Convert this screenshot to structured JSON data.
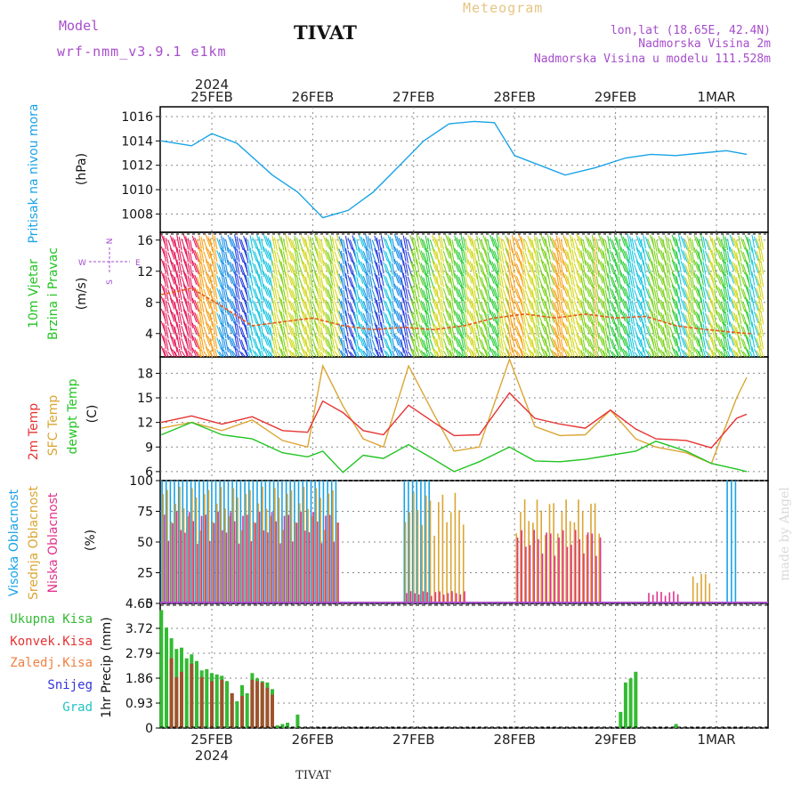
{
  "header": {
    "model_label": "Model",
    "model_name": "wrf-nmm_v3.9.1 e1km",
    "title": "TIVAT",
    "meteogram": "Meteogram",
    "lonlat": "lon,lat (18.65E, 42.4N)",
    "elevation": "Nadmorska Visina 2m",
    "model_elevation": "Nadmorska Visina u modelu 111.528m",
    "footer": "TIVAT",
    "watermark": "made by Angel",
    "year_top": "2024",
    "year_bottom": "2024"
  },
  "colors": {
    "pressure": "#1aa3e6",
    "temp2m": "#e53333",
    "sfc_temp": "#dba533",
    "dewpoint": "#22c422",
    "purple": "#a64dcc",
    "precip_total": "#33bb33",
    "precip_conv": "#e53333",
    "precip_frozen": "#f08040",
    "snow": "#3333dd",
    "graupel": "#22c4c4",
    "grid": "#888888"
  },
  "dates": [
    "25FEB",
    "26FEB",
    "27FEB",
    "28FEB",
    "29FEB",
    "1MAR"
  ],
  "panels": {
    "pressure": {
      "label": "Pritisak na nivou mora",
      "unit": "(hPa)"
    },
    "wind": {
      "label1": "10m Vjetar",
      "label2": "Brzina i Pravac",
      "unit": "(m/s)",
      "compass_n": "N",
      "compass_s": "S",
      "compass_w": "W",
      "compass_e": "E"
    },
    "temp": {
      "label1": "2m Temp",
      "label2": "SFC Temp",
      "label3": "dewpt Temp",
      "unit": "(C)"
    },
    "cloud": {
      "label1": "Visoka Oblacnost",
      "label2": "Srednja Oblacnost",
      "label3": "Niska Oblacnost",
      "unit": "(%)"
    },
    "precip": {
      "axis_label": "1hr Precip (mm)",
      "legend": [
        "Ukupna Kisa",
        "Konvek.Kisa",
        "Zaledj.Kisa",
        "Snijeg",
        "Grad"
      ]
    }
  },
  "chart_data": [
    {
      "type": "line",
      "title": "Pritisak na nivou mora",
      "ylabel": "(hPa)",
      "ylim": [
        1006.5,
        1016.8
      ],
      "yticks": [
        "1008",
        "1010",
        "1012",
        "1014",
        "1016"
      ],
      "xlim_days": [
        "2024-02-24T12",
        "2024-03-01T18"
      ],
      "series": [
        {
          "name": "Pritisak na nivou mora",
          "x": [
            0,
            0.3,
            0.5,
            0.75,
            1.1,
            1.35,
            1.6,
            1.85,
            2.1,
            2.35,
            2.6,
            2.85,
            3.1,
            3.3,
            3.5,
            3.75,
            4.0,
            4.3,
            4.6,
            4.85,
            5.1,
            5.35,
            5.6,
            5.8
          ],
          "values": [
            1014.0,
            1013.6,
            1014.6,
            1013.8,
            1011.2,
            1009.8,
            1007.7,
            1008.3,
            1009.8,
            1011.9,
            1014.0,
            1015.4,
            1015.6,
            1015.5,
            1012.8,
            1012.0,
            1011.2,
            1011.8,
            1012.6,
            1012.9,
            1012.8,
            1013.0,
            1013.2,
            1012.9
          ]
        }
      ]
    },
    {
      "type": "line",
      "title": "10m Vjetar",
      "ylabel": "(m/s)",
      "ylim": [
        1,
        17
      ],
      "yticks": [
        "4",
        "8",
        "12",
        "16"
      ],
      "series": [
        {
          "name": "Brzina i Pravac",
          "x": [
            0,
            0.3,
            0.6,
            0.9,
            1.2,
            1.5,
            1.8,
            2.1,
            2.4,
            2.7,
            3.0,
            3.3,
            3.6,
            3.9,
            4.2,
            4.5,
            4.8,
            5.1,
            5.4,
            5.8
          ],
          "values": [
            9.0,
            9.8,
            7.5,
            5.0,
            5.5,
            6.0,
            5.0,
            4.5,
            4.8,
            4.5,
            5.0,
            6.0,
            6.5,
            6.0,
            6.5,
            6.0,
            6.2,
            5.0,
            4.5,
            4.0
          ]
        }
      ]
    },
    {
      "type": "line",
      "title": "2m Temp / SFC Temp / dewpt Temp",
      "ylabel": "(C)",
      "ylim": [
        4.9,
        20
      ],
      "yticks": [
        "6",
        "9",
        "12",
        "15",
        "18"
      ],
      "series": [
        {
          "name": "2m Temp",
          "x": [
            0,
            0.3,
            0.6,
            0.9,
            1.2,
            1.45,
            1.6,
            1.8,
            2.0,
            2.2,
            2.45,
            2.7,
            2.9,
            3.15,
            3.45,
            3.7,
            3.95,
            4.2,
            4.45,
            4.7,
            4.9,
            5.2,
            5.45,
            5.7,
            5.8
          ],
          "values": [
            12.0,
            12.8,
            11.8,
            12.7,
            11.0,
            10.8,
            14.6,
            13.2,
            11.0,
            10.5,
            14.1,
            12.0,
            10.4,
            10.5,
            15.6,
            12.5,
            11.8,
            11.3,
            13.5,
            11.2,
            10.0,
            9.8,
            8.9,
            12.5,
            13.0
          ]
        },
        {
          "name": "SFC Temp",
          "x": [
            0,
            0.3,
            0.6,
            0.9,
            1.2,
            1.45,
            1.6,
            1.8,
            2.0,
            2.2,
            2.45,
            2.7,
            2.9,
            3.15,
            3.45,
            3.7,
            3.95,
            4.2,
            4.45,
            4.7,
            4.9,
            5.2,
            5.45,
            5.7,
            5.8
          ],
          "values": [
            11.3,
            12.0,
            11.0,
            12.3,
            9.8,
            9.0,
            18.9,
            14.0,
            10.0,
            9.0,
            18.9,
            13.0,
            8.5,
            9.0,
            19.7,
            11.5,
            10.4,
            10.5,
            13.5,
            10.0,
            9.0,
            8.3,
            7.0,
            15.0,
            17.5
          ]
        },
        {
          "name": "dewpt Temp",
          "x": [
            0,
            0.3,
            0.6,
            0.9,
            1.2,
            1.45,
            1.6,
            1.8,
            2.0,
            2.2,
            2.45,
            2.7,
            2.9,
            3.15,
            3.45,
            3.7,
            3.95,
            4.2,
            4.45,
            4.7,
            4.9,
            5.2,
            5.45,
            5.7,
            5.8
          ],
          "values": [
            10.5,
            12.0,
            10.5,
            10.0,
            8.3,
            7.8,
            8.5,
            5.9,
            8.0,
            7.6,
            9.3,
            7.5,
            6.0,
            7.2,
            9.0,
            7.3,
            7.2,
            7.5,
            8.0,
            8.5,
            9.7,
            8.5,
            7.0,
            6.3,
            6.0
          ]
        }
      ]
    },
    {
      "type": "bar",
      "title": "Visoka / Srednja / Niska Oblacnost",
      "ylabel": "(%)",
      "ylim": [
        0,
        100
      ],
      "yticks": [
        "0",
        "25",
        "50",
        "75",
        "100"
      ],
      "series": [
        {
          "name": "Visoka Oblacnost",
          "segments_days": [
            [
              0.0,
              1.75,
              100
            ],
            [
              2.4,
              2.65,
              100
            ],
            [
              5.6,
              5.7,
              100
            ]
          ]
        },
        {
          "name": "Srednja Oblacnost",
          "segments_days": [
            [
              0.0,
              1.75,
              95
            ],
            [
              2.4,
              3.0,
              90
            ],
            [
              3.5,
              4.35,
              85
            ],
            [
              5.25,
              5.45,
              25
            ]
          ]
        },
        {
          "name": "Niska Oblacnost",
          "segments_days": [
            [
              0.0,
              1.75,
              75
            ],
            [
              2.4,
              3.0,
              10
            ],
            [
              3.5,
              4.35,
              60
            ],
            [
              4.8,
              5.1,
              10
            ]
          ]
        }
      ]
    },
    {
      "type": "bar",
      "title": "1hr Precip",
      "ylabel": "1hr Precip (mm)",
      "ylim": [
        0,
        4.65
      ],
      "yticks": [
        "0",
        "0.93",
        "1.86",
        "2.79",
        "3.72",
        "4.65"
      ],
      "series": [
        {
          "name": "Ukupna Kisa",
          "x": [
            0.0,
            0.05,
            0.1,
            0.15,
            0.2,
            0.25,
            0.3,
            0.35,
            0.4,
            0.45,
            0.5,
            0.55,
            0.6,
            0.65,
            0.7,
            0.75,
            0.8,
            0.85,
            0.9,
            0.95,
            1.0,
            1.05,
            1.1,
            1.15,
            1.2,
            1.25,
            1.35,
            1.4,
            1.45,
            1.5,
            1.55,
            4.55,
            4.6,
            4.65,
            4.7,
            5.1
          ],
          "values": [
            4.4,
            3.75,
            3.35,
            2.95,
            3.0,
            2.6,
            2.75,
            2.5,
            2.15,
            2.2,
            2.05,
            2.0,
            1.95,
            1.75,
            1.3,
            1.0,
            1.6,
            1.3,
            2.05,
            1.85,
            1.75,
            1.7,
            1.45,
            0.1,
            0.15,
            0.2,
            0.5,
            0.0,
            0.0,
            0.0,
            0.0,
            0.6,
            1.7,
            1.85,
            2.1,
            0.15
          ]
        },
        {
          "name": "Konvek.Kisa",
          "x": [
            0.1,
            0.15,
            0.2,
            0.3,
            0.4,
            0.5,
            0.6,
            0.7,
            0.8,
            0.9,
            0.95,
            1.0,
            1.05,
            1.1
          ],
          "values": [
            2.6,
            1.9,
            2.1,
            2.4,
            1.9,
            1.75,
            1.8,
            1.3,
            1.2,
            1.8,
            1.75,
            1.7,
            1.5,
            1.25
          ]
        }
      ]
    }
  ]
}
